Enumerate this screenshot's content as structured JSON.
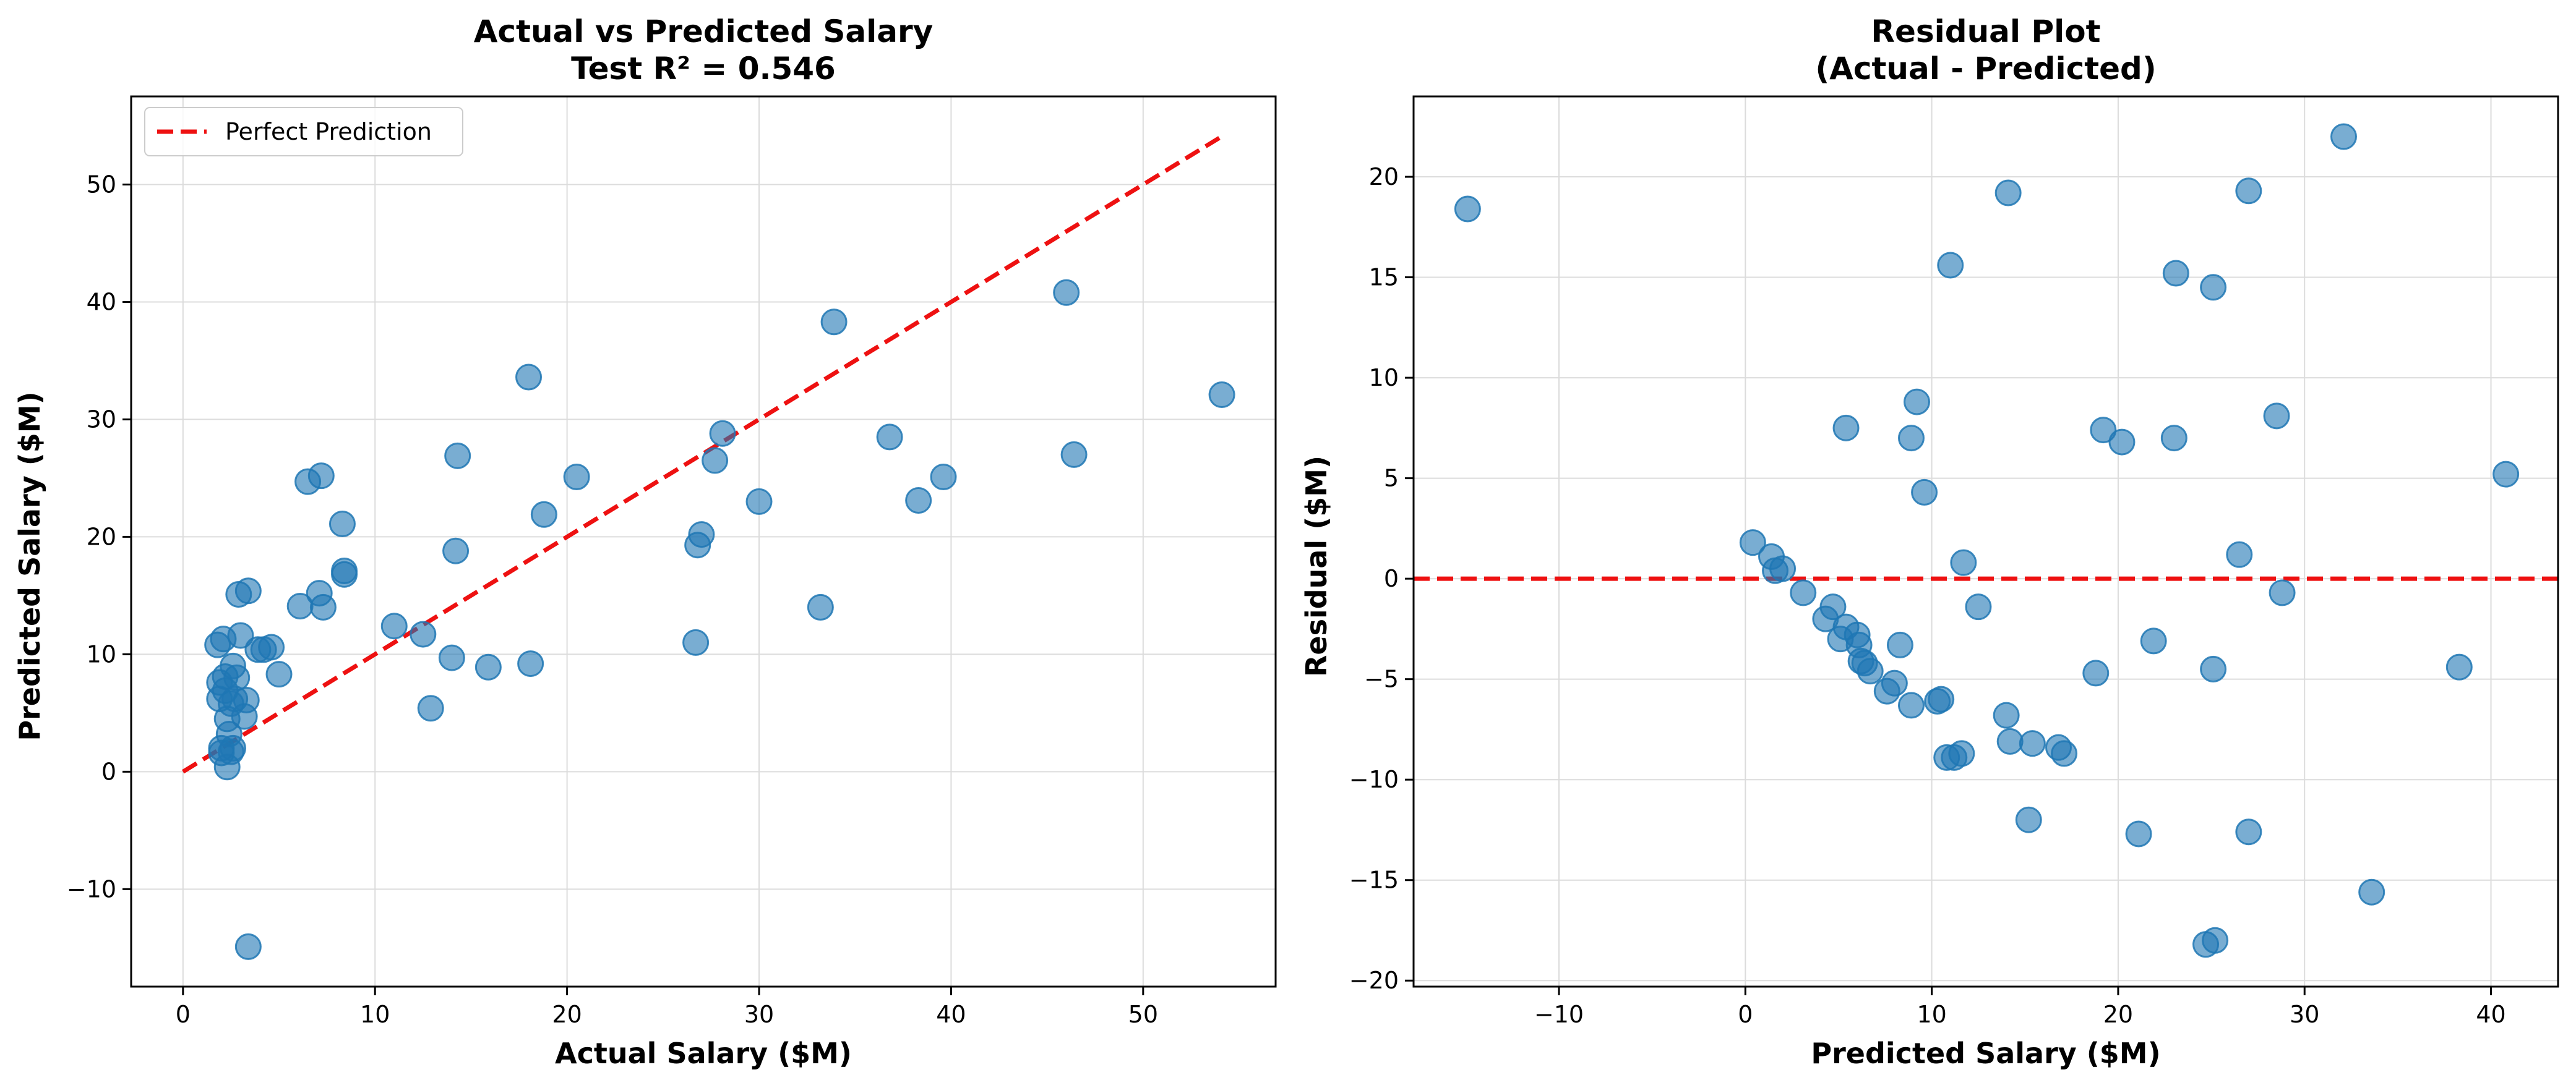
{
  "chart_data": [
    {
      "type": "scatter",
      "title": "Actual vs Predicted Salary",
      "subtitle": "Test R² = 0.546",
      "xlabel": "Actual Salary ($M)",
      "ylabel": "Predicted Salary ($M)",
      "xlim": [
        -2.7,
        56.9
      ],
      "ylim": [
        -18.3,
        57.5
      ],
      "xticks": [
        0,
        10,
        20,
        30,
        40,
        50
      ],
      "yticks": [
        -10,
        0,
        10,
        20,
        30,
        40,
        50
      ],
      "xtick_labels": [
        "0",
        "10",
        "20",
        "30",
        "40",
        "50"
      ],
      "ytick_labels": [
        "−10",
        "0",
        "10",
        "20",
        "30",
        "40",
        "50"
      ],
      "grid": true,
      "legend": {
        "position": "top-left",
        "entries": [
          "Perfect Prediction"
        ]
      },
      "reference_line": {
        "name": "Perfect Prediction",
        "x": [
          0,
          54.1
        ],
        "y": [
          0,
          54.1
        ],
        "style": "dashed",
        "color": "#ee1111"
      },
      "points": {
        "x": [
          54.1,
          46.4,
          46.0,
          39.6,
          38.3,
          36.8,
          33.9,
          33.2,
          30.0,
          28.1,
          27.7,
          27.0,
          26.8,
          26.7,
          20.5,
          18.8,
          18.1,
          18.0,
          15.9,
          14.3,
          14.2,
          14.0,
          12.9,
          12.5,
          11.0,
          8.4,
          8.4,
          8.3,
          7.3,
          7.2,
          7.1,
          6.5,
          6.1,
          5.0,
          4.6,
          4.2,
          3.9,
          3.4,
          3.4,
          3.3,
          3.2,
          3.0,
          2.9,
          2.8,
          2.7,
          2.6,
          2.6,
          2.5,
          2.5,
          2.4,
          2.3,
          2.3,
          2.2,
          2.2,
          2.1,
          2.0,
          2.0,
          1.9,
          1.9,
          1.8
        ],
        "y": [
          32.1,
          27.0,
          40.8,
          25.1,
          23.1,
          28.5,
          38.3,
          14.0,
          23.0,
          28.8,
          26.5,
          20.2,
          19.3,
          11.0,
          25.1,
          21.9,
          9.2,
          33.6,
          8.9,
          26.9,
          18.8,
          9.7,
          5.4,
          11.7,
          12.4,
          16.8,
          17.1,
          21.1,
          14.0,
          25.2,
          15.2,
          24.7,
          14.1,
          8.3,
          10.6,
          10.4,
          10.4,
          15.4,
          -14.9,
          6.1,
          4.7,
          11.6,
          15.1,
          8.0,
          6.2,
          9.0,
          2.0,
          1.7,
          5.8,
          3.2,
          4.5,
          0.4,
          8.1,
          6.9,
          11.3,
          2.0,
          1.6,
          6.2,
          7.6,
          10.8
        ]
      }
    },
    {
      "type": "scatter",
      "title": "Residual Plot",
      "subtitle": "(Actual - Predicted)",
      "xlabel": "Predicted Salary ($M)",
      "ylabel": "Residual ($M)",
      "xlim": [
        -17.8,
        43.6
      ],
      "ylim": [
        -20.3,
        24.0
      ],
      "xticks": [
        -10,
        0,
        10,
        20,
        30,
        40
      ],
      "yticks": [
        -20,
        -15,
        -10,
        -5,
        0,
        5,
        10,
        15,
        20
      ],
      "xtick_labels": [
        "−10",
        "0",
        "10",
        "20",
        "30",
        "40"
      ],
      "ytick_labels": [
        "−20",
        "−15",
        "−10",
        "−5",
        "0",
        "5",
        "10",
        "15",
        "20"
      ],
      "grid": true,
      "reference_line": {
        "x": [
          -17.8,
          43.6
        ],
        "y": [
          0,
          0
        ],
        "style": "dashed",
        "color": "#ee1111"
      },
      "points": {
        "x": [
          -14.9,
          14.1,
          11.0,
          32.1,
          27.0,
          23.1,
          25.1,
          9.2,
          5.4,
          8.9,
          19.2,
          20.2,
          23.0,
          28.5,
          40.8,
          9.6,
          0.4,
          1.4,
          1.6,
          2.0,
          3.1,
          4.3,
          4.7,
          5.1,
          5.4,
          6.0,
          6.1,
          6.2,
          6.4,
          6.7,
          7.6,
          8.0,
          8.3,
          8.9,
          10.3,
          10.5,
          10.8,
          11.2,
          11.6,
          11.7,
          12.5,
          14.0,
          14.2,
          15.2,
          15.4,
          16.8,
          17.1,
          18.8,
          21.1,
          21.9,
          25.1,
          24.7,
          25.2,
          26.5,
          27.0,
          28.8,
          33.6,
          38.3
        ],
        "y": [
          18.4,
          19.2,
          15.6,
          22.0,
          19.3,
          15.2,
          14.5,
          8.8,
          7.5,
          7.0,
          7.4,
          6.8,
          7.0,
          8.1,
          5.2,
          4.3,
          1.8,
          1.1,
          0.4,
          0.5,
          -0.7,
          -2.0,
          -1.4,
          -3.0,
          -2.4,
          -2.8,
          -3.3,
          -4.1,
          -4.2,
          -4.6,
          -5.6,
          -5.2,
          -3.3,
          -6.3,
          -6.1,
          -6.0,
          -8.9,
          -8.9,
          -8.7,
          0.8,
          -1.4,
          -6.8,
          -8.1,
          -12.0,
          -8.2,
          -8.4,
          -8.7,
          -4.7,
          -12.7,
          -3.1,
          -4.5,
          -18.2,
          -18.0,
          1.2,
          -12.6,
          -0.7,
          -15.6,
          -4.4
        ]
      }
    }
  ]
}
